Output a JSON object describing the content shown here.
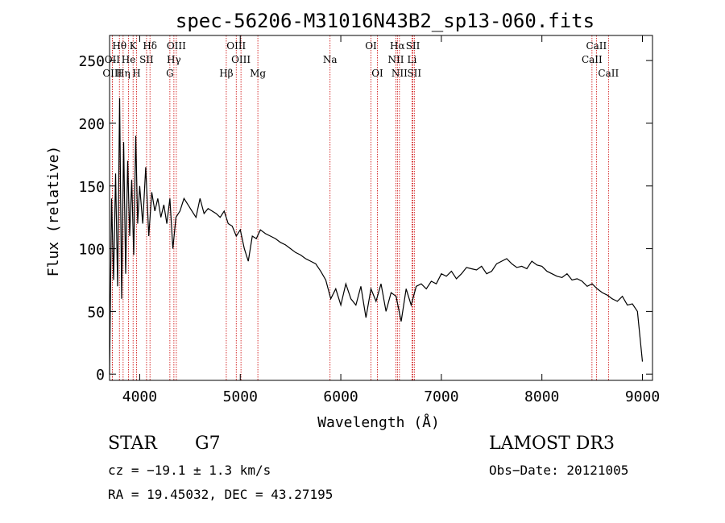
{
  "chart_data": {
    "type": "line",
    "title": "spec-56206-M31016N43B2_sp13-060.fits",
    "xlabel": "Wavelength (Å)",
    "ylabel": "Flux (relative)",
    "xlim": [
      3700,
      9100
    ],
    "ylim": [
      -5,
      270
    ],
    "xticks": [
      4000,
      5000,
      6000,
      7000,
      8000,
      9000
    ],
    "yticks": [
      0,
      50,
      100,
      150,
      200,
      250
    ],
    "line_color": "#000000",
    "marker_color": "#cc0000",
    "series": [
      {
        "name": "flux",
        "x": [
          3700,
          3720,
          3740,
          3760,
          3780,
          3800,
          3820,
          3840,
          3860,
          3880,
          3900,
          3920,
          3940,
          3960,
          3980,
          4000,
          4030,
          4060,
          4090,
          4120,
          4150,
          4180,
          4210,
          4240,
          4270,
          4300,
          4330,
          4360,
          4400,
          4440,
          4480,
          4520,
          4560,
          4600,
          4640,
          4680,
          4720,
          4760,
          4800,
          4840,
          4880,
          4920,
          4960,
          5000,
          5040,
          5080,
          5120,
          5160,
          5200,
          5250,
          5300,
          5350,
          5400,
          5450,
          5500,
          5550,
          5600,
          5650,
          5700,
          5750,
          5800,
          5850,
          5900,
          5950,
          6000,
          6050,
          6100,
          6150,
          6200,
          6250,
          6300,
          6350,
          6400,
          6450,
          6500,
          6550,
          6600,
          6650,
          6700,
          6750,
          6800,
          6850,
          6900,
          6950,
          7000,
          7050,
          7100,
          7150,
          7200,
          7250,
          7300,
          7350,
          7400,
          7450,
          7500,
          7550,
          7600,
          7650,
          7700,
          7750,
          7800,
          7850,
          7900,
          7950,
          8000,
          8050,
          8100,
          8150,
          8200,
          8250,
          8300,
          8350,
          8400,
          8450,
          8500,
          8550,
          8600,
          8650,
          8700,
          8750,
          8800,
          8850,
          8900,
          8950,
          9000
        ],
        "y": [
          0,
          140,
          75,
          160,
          70,
          220,
          60,
          185,
          80,
          170,
          110,
          155,
          95,
          190,
          120,
          150,
          120,
          165,
          110,
          145,
          130,
          140,
          125,
          135,
          120,
          140,
          100,
          125,
          130,
          140,
          135,
          130,
          125,
          140,
          128,
          132,
          130,
          128,
          125,
          130,
          120,
          118,
          110,
          115,
          100,
          90,
          110,
          108,
          115,
          112,
          110,
          108,
          105,
          103,
          100,
          97,
          95,
          92,
          90,
          88,
          82,
          75,
          60,
          68,
          55,
          72,
          60,
          55,
          70,
          45,
          68,
          58,
          72,
          50,
          65,
          62,
          42,
          68,
          55,
          70,
          72,
          68,
          74,
          72,
          80,
          78,
          82,
          76,
          80,
          85,
          84,
          83,
          86,
          80,
          82,
          88,
          90,
          92,
          88,
          85,
          86,
          84,
          90,
          87,
          86,
          82,
          80,
          78,
          77,
          80,
          75,
          76,
          74,
          70,
          72,
          68,
          65,
          63,
          60,
          58,
          62,
          55,
          56,
          50,
          10
        ]
      }
    ],
    "spectral_lines": [
      {
        "label": "Hθ",
        "wave": 3798,
        "row": 1
      },
      {
        "label": "K",
        "wave": 3934,
        "row": 1
      },
      {
        "label": "Hδ",
        "wave": 4102,
        "row": 1
      },
      {
        "label": "OIII",
        "wave": 4364,
        "row": 1
      },
      {
        "label": "OIII",
        "wave": 4960,
        "row": 1
      },
      {
        "label": "OI",
        "wave": 6300,
        "row": 1
      },
      {
        "label": "Hα",
        "wave": 6563,
        "row": 1
      },
      {
        "label": "SII",
        "wave": 6717,
        "row": 1
      },
      {
        "label": "CaII",
        "wave": 8542,
        "row": 1
      },
      {
        "label": "OII",
        "wave": 3727,
        "row": 2
      },
      {
        "label": "He",
        "wave": 3889,
        "row": 2
      },
      {
        "label": "SII",
        "wave": 4068,
        "row": 2
      },
      {
        "label": "Hγ",
        "wave": 4340,
        "row": 2
      },
      {
        "label": "OIII",
        "wave": 5007,
        "row": 2
      },
      {
        "label": "Na",
        "wave": 5893,
        "row": 2
      },
      {
        "label": "NII",
        "wave": 6548,
        "row": 2
      },
      {
        "label": "Li",
        "wave": 6708,
        "row": 2
      },
      {
        "label": "CaII",
        "wave": 8498,
        "row": 2
      },
      {
        "label": "OIII",
        "wave": 3727,
        "row": 3
      },
      {
        "label": "Hη",
        "wave": 3835,
        "row": 3
      },
      {
        "label": "H",
        "wave": 3968,
        "row": 3
      },
      {
        "label": "G",
        "wave": 4300,
        "row": 3
      },
      {
        "label": "Hβ",
        "wave": 4861,
        "row": 3
      },
      {
        "label": "Mg",
        "wave": 5175,
        "row": 3
      },
      {
        "label": "OI",
        "wave": 6364,
        "row": 3
      },
      {
        "label": "NII",
        "wave": 6583,
        "row": 3
      },
      {
        "label": "SII",
        "wave": 6731,
        "row": 3
      },
      {
        "label": "CaII",
        "wave": 8662,
        "row": 3
      }
    ]
  },
  "info": {
    "class": "STAR",
    "subclass": "G7",
    "survey": "LAMOST DR3",
    "cz": "cz = −19.1 ± 1.3 km/s",
    "obs_date": "Obs−Date: 20121005",
    "radec": "RA =  19.45032, DEC =  43.27195"
  }
}
